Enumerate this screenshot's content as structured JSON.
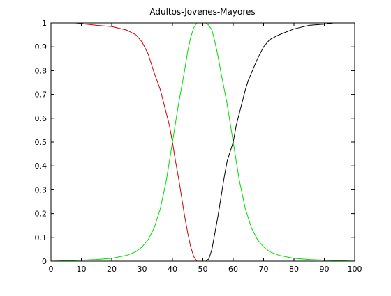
{
  "chart_data": {
    "type": "line",
    "title": "Adultos-Jovenes-Mayores",
    "xlabel": "",
    "ylabel": "",
    "xlim": [
      0,
      100
    ],
    "ylim": [
      0,
      1
    ],
    "xticks": [
      0,
      10,
      20,
      30,
      40,
      50,
      60,
      70,
      80,
      90,
      100
    ],
    "xtick_labels": [
      "0",
      "10",
      "20",
      "30",
      "40",
      "50",
      "60",
      "70",
      "80",
      "90",
      "100"
    ],
    "yticks": [
      0,
      0.1,
      0.2,
      0.3,
      0.4,
      0.5,
      0.6,
      0.7,
      0.8,
      0.9,
      1
    ],
    "ytick_labels": [
      "0",
      "0.1",
      "0.2",
      "0.3",
      "0.4",
      "0.5",
      "0.6",
      "0.7",
      "0.8",
      "0.9",
      "1"
    ],
    "grid": false,
    "legend": "none",
    "series": [
      {
        "color": "#cc0000",
        "x": [
          8,
          15,
          20,
          25,
          28,
          30,
          32,
          34,
          36,
          37,
          38,
          39,
          40,
          41,
          42,
          43,
          44,
          45,
          46,
          47,
          48,
          50
        ],
        "y": [
          1.0,
          0.99,
          0.985,
          0.97,
          0.95,
          0.92,
          0.87,
          0.79,
          0.72,
          0.67,
          0.62,
          0.57,
          0.5,
          0.42,
          0.35,
          0.27,
          0.19,
          0.12,
          0.06,
          0.02,
          0.0,
          0.0
        ]
      },
      {
        "color": "#00dd00",
        "x": [
          0,
          10,
          15,
          20,
          25,
          28,
          30,
          32,
          34,
          36,
          38,
          40,
          42,
          44,
          45,
          46,
          47,
          48,
          49,
          50,
          51,
          52,
          53,
          54,
          55,
          56,
          58,
          60,
          62,
          64,
          66,
          68,
          70,
          72,
          75,
          80,
          85,
          90,
          100
        ],
        "y": [
          0.0,
          0.004,
          0.007,
          0.012,
          0.025,
          0.04,
          0.06,
          0.09,
          0.14,
          0.22,
          0.34,
          0.5,
          0.66,
          0.8,
          0.88,
          0.94,
          0.98,
          1.0,
          1.0,
          1.0,
          1.0,
          0.99,
          0.97,
          0.92,
          0.86,
          0.79,
          0.66,
          0.5,
          0.34,
          0.22,
          0.14,
          0.09,
          0.06,
          0.04,
          0.025,
          0.012,
          0.007,
          0.004,
          0.0
        ]
      },
      {
        "color": "#000000",
        "x": [
          49,
          50,
          51,
          52,
          53,
          54,
          55,
          56,
          57,
          58,
          59,
          60,
          61,
          62,
          63,
          64,
          65,
          66,
          68,
          70,
          72,
          75,
          80,
          85,
          90,
          93
        ],
        "y": [
          0.0,
          0.0,
          0.0,
          0.01,
          0.05,
          0.12,
          0.19,
          0.27,
          0.35,
          0.42,
          0.46,
          0.5,
          0.57,
          0.62,
          0.67,
          0.72,
          0.76,
          0.79,
          0.85,
          0.9,
          0.93,
          0.95,
          0.975,
          0.99,
          0.995,
          1.0
        ]
      }
    ]
  }
}
